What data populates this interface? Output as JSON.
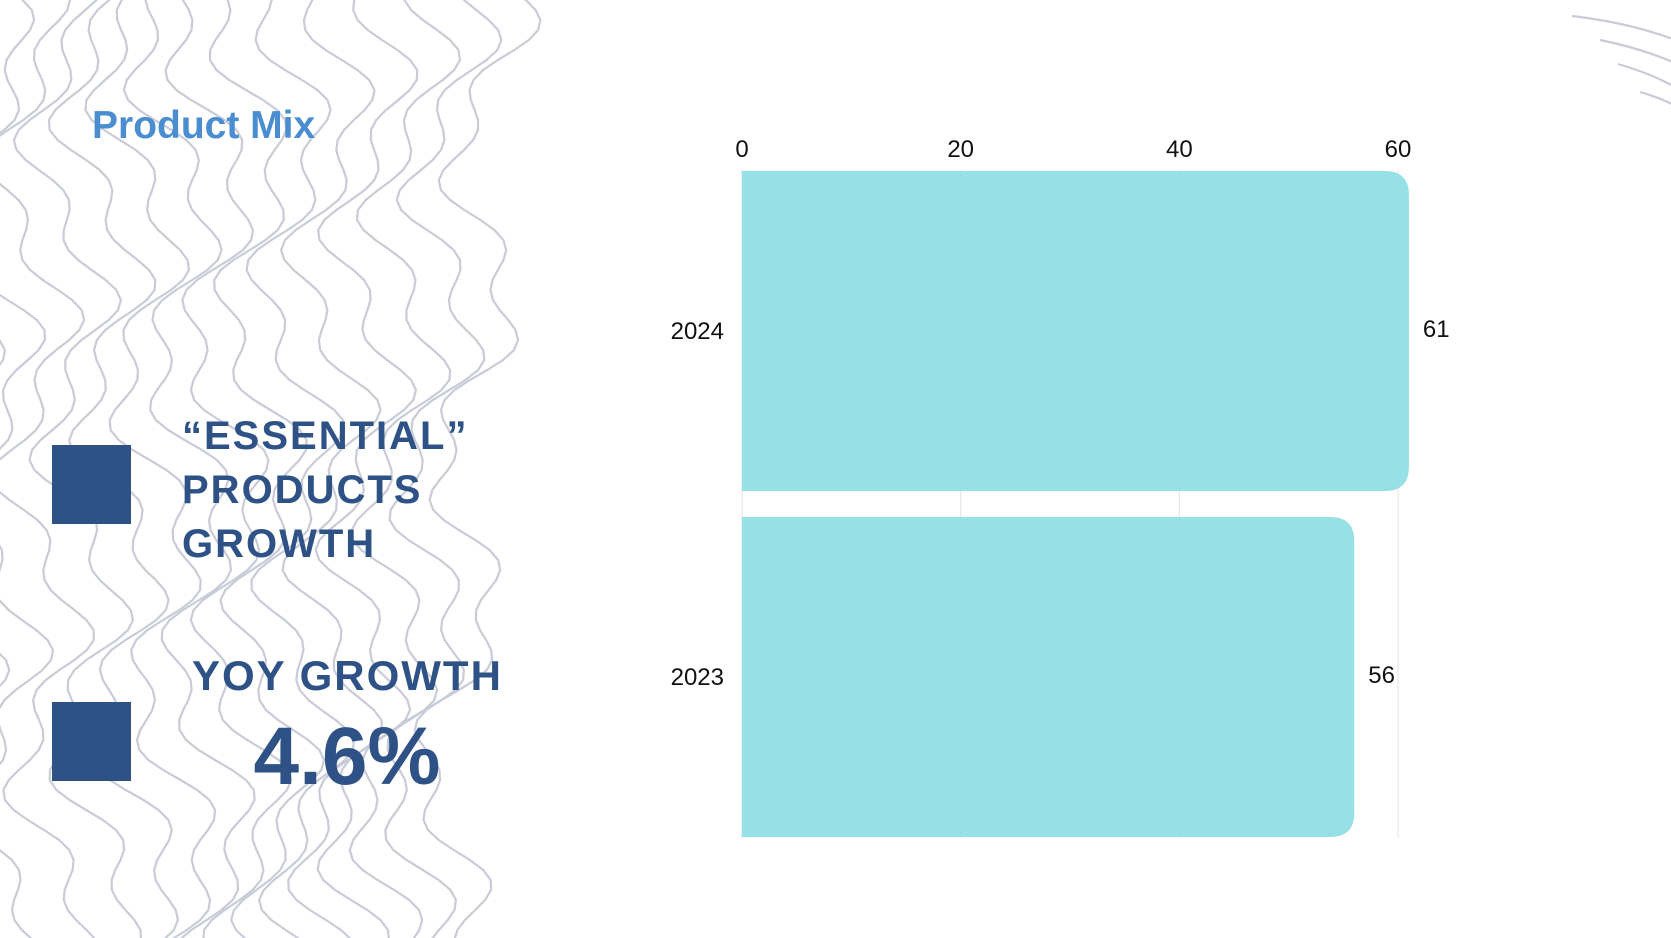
{
  "title": "Product Mix",
  "highlights": {
    "headline_lines": [
      "“ESSENTIAL”",
      "PRODUCTS",
      "GROWTH"
    ],
    "yoy_label": "YOY GROWTH",
    "yoy_value": "4.6%"
  },
  "colors": {
    "title": "#4a8dd0",
    "accent": "#2e5286",
    "bar": "#96e1e5",
    "contour": "#c9ccd8",
    "grid": "#e3e3e3"
  },
  "chart_data": {
    "type": "bar",
    "orientation": "horizontal",
    "categories": [
      "2024",
      "2023"
    ],
    "values": [
      61,
      56
    ],
    "xlim": [
      0,
      60
    ],
    "xticks": [
      0,
      20,
      40,
      60
    ],
    "xaxis_position": "top",
    "data_labels": [
      "61",
      "56"
    ],
    "grid": true
  }
}
